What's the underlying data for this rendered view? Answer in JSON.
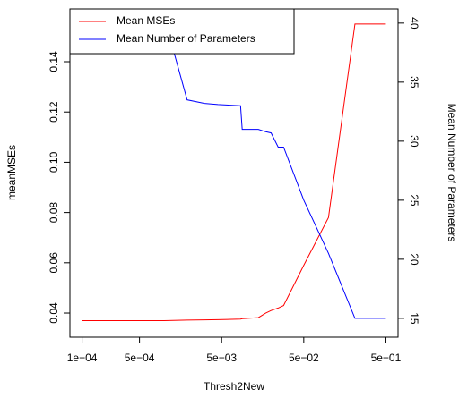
{
  "chart_data": {
    "type": "line",
    "xlabel": "Thresh2New",
    "ylabel": "meanMSEs",
    "y2label": "Mean Number of Parameters",
    "xscale": "log",
    "legend": "top-left",
    "x": [
      0.0001,
      0.001,
      0.0019,
      0.0031,
      0.0045,
      0.0085,
      0.0089,
      0.014,
      0.0172,
      0.02,
      0.0244,
      0.0284,
      0.05,
      0.1,
      0.21,
      0.5
    ],
    "series": [
      {
        "name": "Mean MSEs",
        "color": "#ff0000",
        "axis": "y",
        "values": [
          0.037,
          0.037,
          0.0372,
          0.0373,
          0.0374,
          0.0376,
          0.0378,
          0.0382,
          0.04,
          0.041,
          0.042,
          0.043,
          0.059,
          0.078,
          0.155,
          0.155
        ]
      },
      {
        "name": "Mean Number of Parameters",
        "color": "#0000ff",
        "axis": "y2",
        "values": [
          40.5,
          40.5,
          33.5,
          33.2,
          33.1,
          33,
          31,
          31,
          30.8,
          30.7,
          29.5,
          29.5,
          25,
          20.5,
          15,
          15
        ]
      }
    ],
    "xlim": [
      7.11e-05,
      0.703
    ],
    "xticks": [
      {
        "value": 0.0001,
        "label": "1e−04"
      },
      {
        "value": 0.0005,
        "label": "5e−04"
      },
      {
        "value": 0.005,
        "label": "5e−03"
      },
      {
        "value": 0.05,
        "label": "5e−02"
      },
      {
        "value": 0.5,
        "label": "5e−01"
      }
    ],
    "ylim": [
      0.0304,
      0.161
    ],
    "yticks": [
      0.04,
      0.06,
      0.08,
      {
        "value": 0.1,
        "label": "0.10"
      },
      0.12,
      0.14
    ],
    "y2lim": [
      13.4,
      41.2
    ],
    "y2ticks": [
      15,
      20,
      25,
      30,
      35,
      40
    ]
  }
}
